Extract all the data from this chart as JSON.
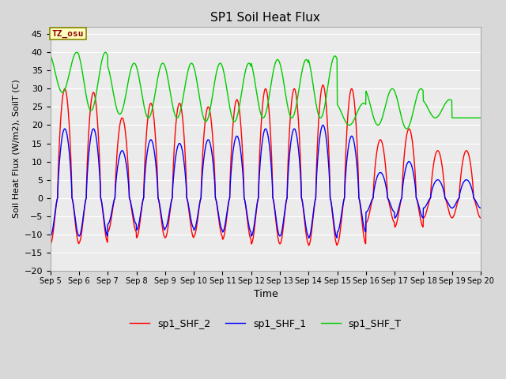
{
  "title": "SP1 Soil Heat Flux",
  "xlabel": "Time",
  "ylabel": "Soil Heat Flux (W/m2), SoilT (C)",
  "ylim": [
    -20,
    47
  ],
  "yticks": [
    -20,
    -15,
    -10,
    -5,
    0,
    5,
    10,
    15,
    20,
    25,
    30,
    35,
    40,
    45
  ],
  "xlim_days": [
    5,
    20
  ],
  "xtick_days": [
    5,
    6,
    7,
    8,
    9,
    10,
    11,
    12,
    13,
    14,
    15,
    16,
    17,
    18,
    19,
    20
  ],
  "color_shf2": "#ff0000",
  "color_shf1": "#0000ff",
  "color_shfT": "#00cc00",
  "legend_labels": [
    "sp1_SHF_2",
    "sp1_SHF_1",
    "sp1_SHF_T"
  ],
  "tz_label": "TZ_osu",
  "background_color": "#d8d8d8",
  "plot_bg_color": "#ebebeb",
  "linewidth": 1.0,
  "grid_color": "#ffffff",
  "font_family": "DejaVu Sans"
}
